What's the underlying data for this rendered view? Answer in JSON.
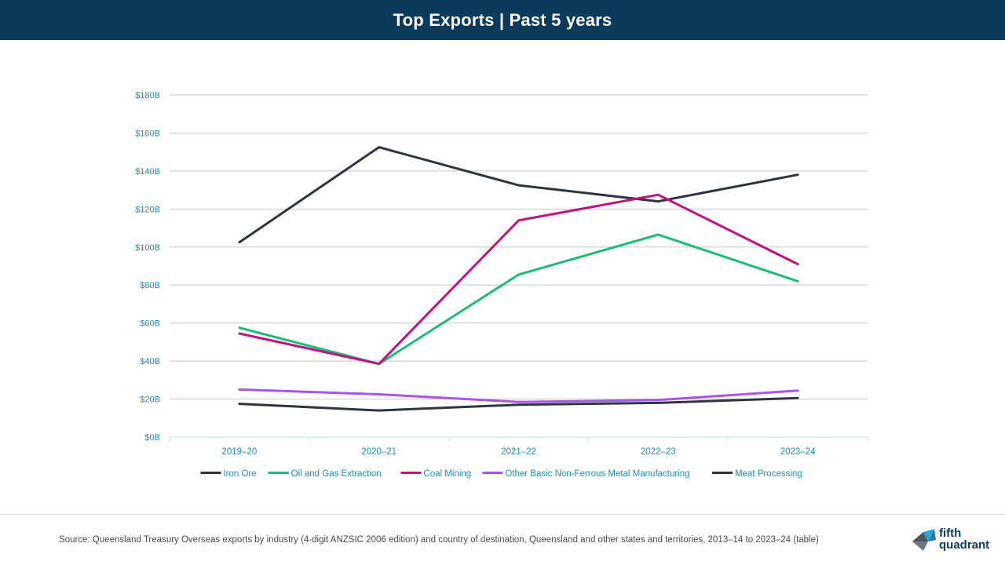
{
  "header": {
    "title": "Top Exports | Past 5 years"
  },
  "chart_data": {
    "type": "line",
    "title": "",
    "xlabel": "",
    "ylabel": "",
    "categories": [
      "2019–20",
      "2020–21",
      "2021–22",
      "2022–23",
      "2023–24"
    ],
    "ylim": [
      0,
      180
    ],
    "yticks": [
      {
        "value": 0,
        "label": "$0B"
      },
      {
        "value": 20,
        "label": "$20B"
      },
      {
        "value": 40,
        "label": "$40B"
      },
      {
        "value": 60,
        "label": "$60B"
      },
      {
        "value": 80,
        "label": "$80B"
      },
      {
        "value": 100,
        "label": "$100B"
      },
      {
        "value": 120,
        "label": "$120B"
      },
      {
        "value": 140,
        "label": "$140B"
      },
      {
        "value": 160,
        "label": "$160B"
      },
      {
        "value": 180,
        "label": "$180B"
      }
    ],
    "grid": true,
    "legend_position": "bottom",
    "series": [
      {
        "name": "Iron Ore",
        "color": "#2e3440",
        "values": [
          102.5,
          152.5,
          132.5,
          124.0,
          138.0
        ]
      },
      {
        "name": "Oil and Gas Extraction",
        "color": "#1dbb76",
        "values": [
          57.5,
          38.5,
          85.5,
          106.5,
          82.0
        ]
      },
      {
        "name": "Coal Mining",
        "color": "#c0147c",
        "values": [
          54.5,
          38.5,
          114.0,
          127.5,
          91.0
        ]
      },
      {
        "name": "Other Basic Non-Ferrous Metal Manufacturing",
        "color": "#a855e8",
        "values": [
          25.0,
          22.5,
          18.5,
          19.5,
          24.5
        ]
      },
      {
        "name": "Meat Processing",
        "color": "#2e3440",
        "values": [
          17.5,
          14.0,
          17.0,
          18.0,
          20.5
        ]
      }
    ]
  },
  "footer": {
    "source": "Source: Queensland Treasury Overseas exports by industry (4-digit ANZSIC 2006 edition) and country of destination, Queensland and other states and territories, 2013–14 to 2023–24 (table)"
  },
  "logo": {
    "line1": "fifth",
    "line2": "quadrant",
    "icon": "fifth-quadrant-logo-mark"
  }
}
